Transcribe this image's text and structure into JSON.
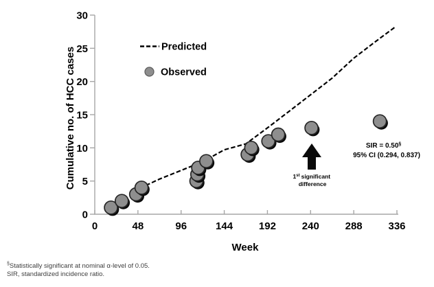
{
  "colors": {
    "observed_fill": "#8e8e8e",
    "observed_stroke": "#262626",
    "shadow": "#0a0a0a",
    "predicted_line": "#000000",
    "axis": "#a6a6a6",
    "text": "#000000",
    "footnote_text": "#3d3d3d"
  },
  "chart_data": {
    "type": "scatter",
    "title": "",
    "xlabel": "Week",
    "ylabel": "Cumulative no. of HCC cases",
    "xlim": [
      0,
      336
    ],
    "ylim": [
      0,
      30
    ],
    "xticks": [
      0,
      48,
      96,
      144,
      192,
      240,
      288,
      336
    ],
    "yticks": [
      0,
      5,
      10,
      15,
      20,
      25,
      30
    ],
    "grid": false,
    "legend_position": "upper-left-inside",
    "series": [
      {
        "name": "Predicted",
        "type": "line",
        "style": "dashed",
        "x": [
          50,
          72,
          96,
          120,
          144,
          168,
          192,
          216,
          240,
          264,
          288,
          312,
          335
        ],
        "y": [
          3.9,
          5.3,
          6.6,
          7.9,
          9.7,
          10.6,
          13.0,
          15.5,
          18.0,
          20.5,
          23.5,
          26.0,
          28.3
        ]
      },
      {
        "name": "Observed",
        "type": "scatter",
        "marker": "circle",
        "x": [
          18,
          30,
          46,
          52,
          113,
          114,
          115,
          124,
          170,
          174,
          193,
          204,
          241,
          317
        ],
        "y": [
          1,
          2,
          3,
          4,
          5,
          6,
          7,
          8,
          9,
          10,
          11,
          12,
          13,
          14
        ]
      }
    ],
    "annotations": [
      {
        "type": "arrow",
        "label": "1st significant difference",
        "points_to_week": 240,
        "points_to_value": 13
      },
      {
        "type": "text",
        "text": "SIR = 0.50§ 95% CI (0.294, 0.837)"
      }
    ]
  },
  "legend": {
    "predicted": "Predicted",
    "observed": "Observed"
  },
  "annotations": {
    "arrow_label_prefix": "1",
    "arrow_label_sup": "st",
    "arrow_label_rest": "significant",
    "arrow_label_line2": "difference",
    "sir_text": "SIR = 0.50",
    "sir_sup": "§",
    "ci_text": "95% CI (0.294, 0.837)"
  },
  "footnotes": {
    "marker": "§",
    "line1": "Statistically significant at nominal α-level of 0.05.",
    "line2": "SIR, standardized incidence ratio."
  }
}
